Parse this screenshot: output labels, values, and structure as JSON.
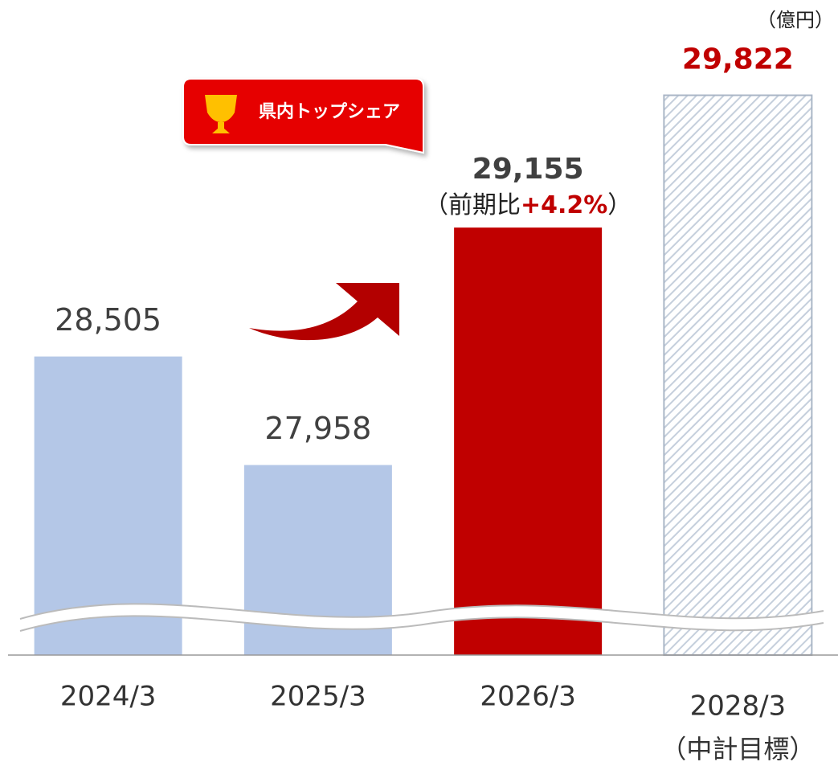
{
  "chart_data": {
    "type": "bar",
    "unit": "（億円）",
    "badge": "県内トップシェア",
    "categories": [
      "2024/3",
      "2025/3",
      "2026/3",
      "2028/3"
    ],
    "category_note": "（中計目標）",
    "values": [
      28505,
      27958,
      29155,
      29822
    ],
    "value_labels": [
      "28,505",
      "27,958",
      "29,155",
      "29,822"
    ],
    "colors": [
      "#b4c7e7",
      "#b4c7e7",
      "#c00000",
      "#d6dce5"
    ],
    "hatched": [
      false,
      false,
      false,
      true
    ],
    "label_colors": [
      "#404040",
      "#404040",
      "#404040",
      "#c00000"
    ],
    "label_bold": [
      false,
      false,
      true,
      true
    ],
    "change_note": {
      "prefix": "（前期比",
      "value": "+4.2%",
      "suffix": "）"
    },
    "ylim": [
      27000,
      30000
    ]
  }
}
